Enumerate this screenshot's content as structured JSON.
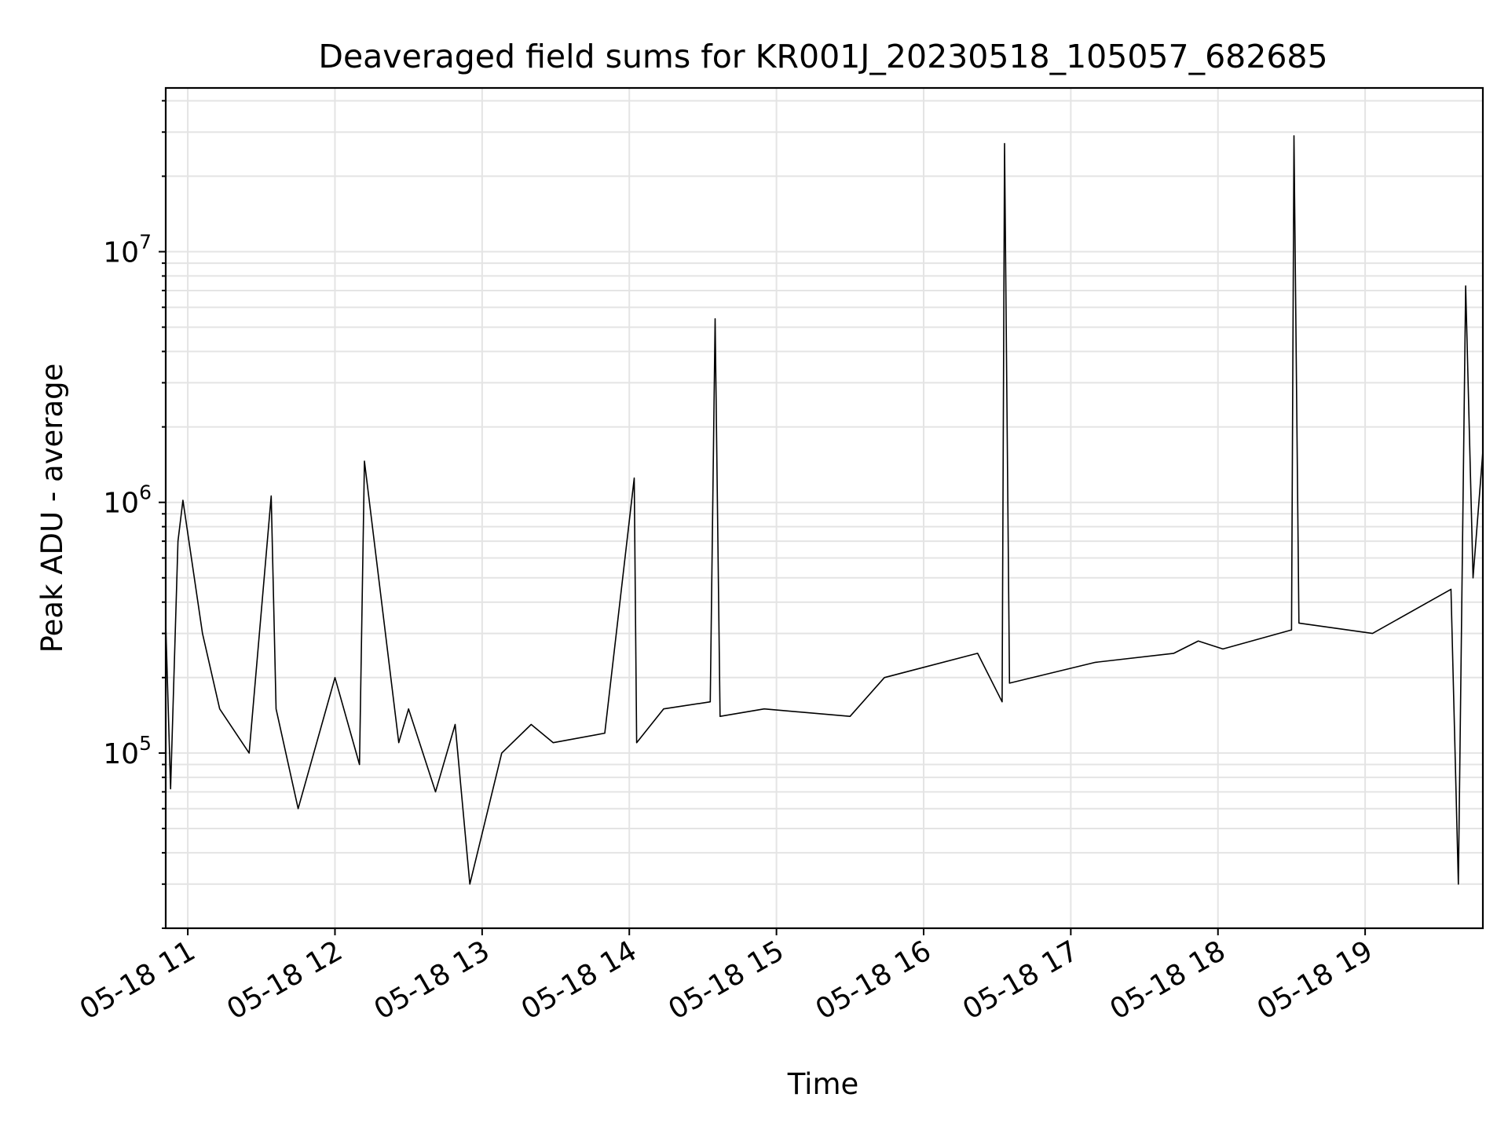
{
  "chart_data": {
    "type": "line",
    "title": "Deaveraged field sums for KR001J_20230518_105057_682685",
    "xlabel": "Time",
    "ylabel": "Peak ADU - average",
    "xscale": "time",
    "yscale": "log",
    "xlim": [
      "2023-05-18 10:51",
      "2023-05-18 19:48"
    ],
    "ylim": [
      20000,
      45000000
    ],
    "grid": true,
    "line_color": "#000000",
    "x_ticks": [
      {
        "value": "2023-05-18 11:00",
        "label": "05-18 11"
      },
      {
        "value": "2023-05-18 12:00",
        "label": "05-18 12"
      },
      {
        "value": "2023-05-18 13:00",
        "label": "05-18 13"
      },
      {
        "value": "2023-05-18 14:00",
        "label": "05-18 14"
      },
      {
        "value": "2023-05-18 15:00",
        "label": "05-18 15"
      },
      {
        "value": "2023-05-18 16:00",
        "label": "05-18 16"
      },
      {
        "value": "2023-05-18 17:00",
        "label": "05-18 17"
      },
      {
        "value": "2023-05-18 18:00",
        "label": "05-18 18"
      },
      {
        "value": "2023-05-18 19:00",
        "label": "05-18 19"
      }
    ],
    "y_ticks": [
      {
        "value": 100000,
        "base": "10",
        "exp": "5"
      },
      {
        "value": 1000000,
        "base": "10",
        "exp": "6"
      },
      {
        "value": 10000000,
        "base": "10",
        "exp": "7"
      }
    ],
    "series": [
      {
        "x": [
          "2023-05-18 10:51",
          "2023-05-18 10:53",
          "2023-05-18 10:56",
          "2023-05-18 10:58",
          "2023-05-18 11:06",
          "2023-05-18 11:13",
          "2023-05-18 11:25",
          "2023-05-18 11:34",
          "2023-05-18 11:36",
          "2023-05-18 11:45",
          "2023-05-18 12:00",
          "2023-05-18 12:10",
          "2023-05-18 12:12",
          "2023-05-18 12:26",
          "2023-05-18 12:30",
          "2023-05-18 12:41",
          "2023-05-18 12:49",
          "2023-05-18 12:55",
          "2023-05-18 13:08",
          "2023-05-18 13:20",
          "2023-05-18 13:29",
          "2023-05-18 13:50",
          "2023-05-18 14:02",
          "2023-05-18 14:03",
          "2023-05-18 14:14",
          "2023-05-18 14:33",
          "2023-05-18 14:35",
          "2023-05-18 14:37",
          "2023-05-18 14:55",
          "2023-05-18 15:30",
          "2023-05-18 15:44",
          "2023-05-18 16:22",
          "2023-05-18 16:32",
          "2023-05-18 16:33",
          "2023-05-18 16:35",
          "2023-05-18 17:10",
          "2023-05-18 17:42",
          "2023-05-18 17:52",
          "2023-05-18 18:02",
          "2023-05-18 18:30",
          "2023-05-18 18:31",
          "2023-05-18 18:33",
          "2023-05-18 19:03",
          "2023-05-18 19:35",
          "2023-05-18 19:38",
          "2023-05-18 19:41",
          "2023-05-18 19:44",
          "2023-05-18 19:48"
        ],
        "values": [
          330000,
          72000,
          700000,
          1020000,
          300000,
          150000,
          100000,
          1060000,
          150000,
          60000,
          200000,
          90000,
          1460000,
          110000,
          150000,
          70000,
          130000,
          30000,
          100000,
          130000,
          110000,
          120000,
          1250000,
          110000,
          150000,
          160000,
          5400000,
          140000,
          150000,
          140000,
          200000,
          250000,
          160000,
          27000000,
          190000,
          230000,
          250000,
          280000,
          260000,
          310000,
          29000000,
          330000,
          300000,
          450000,
          30000,
          7300000,
          500000,
          1600000
        ]
      }
    ]
  }
}
